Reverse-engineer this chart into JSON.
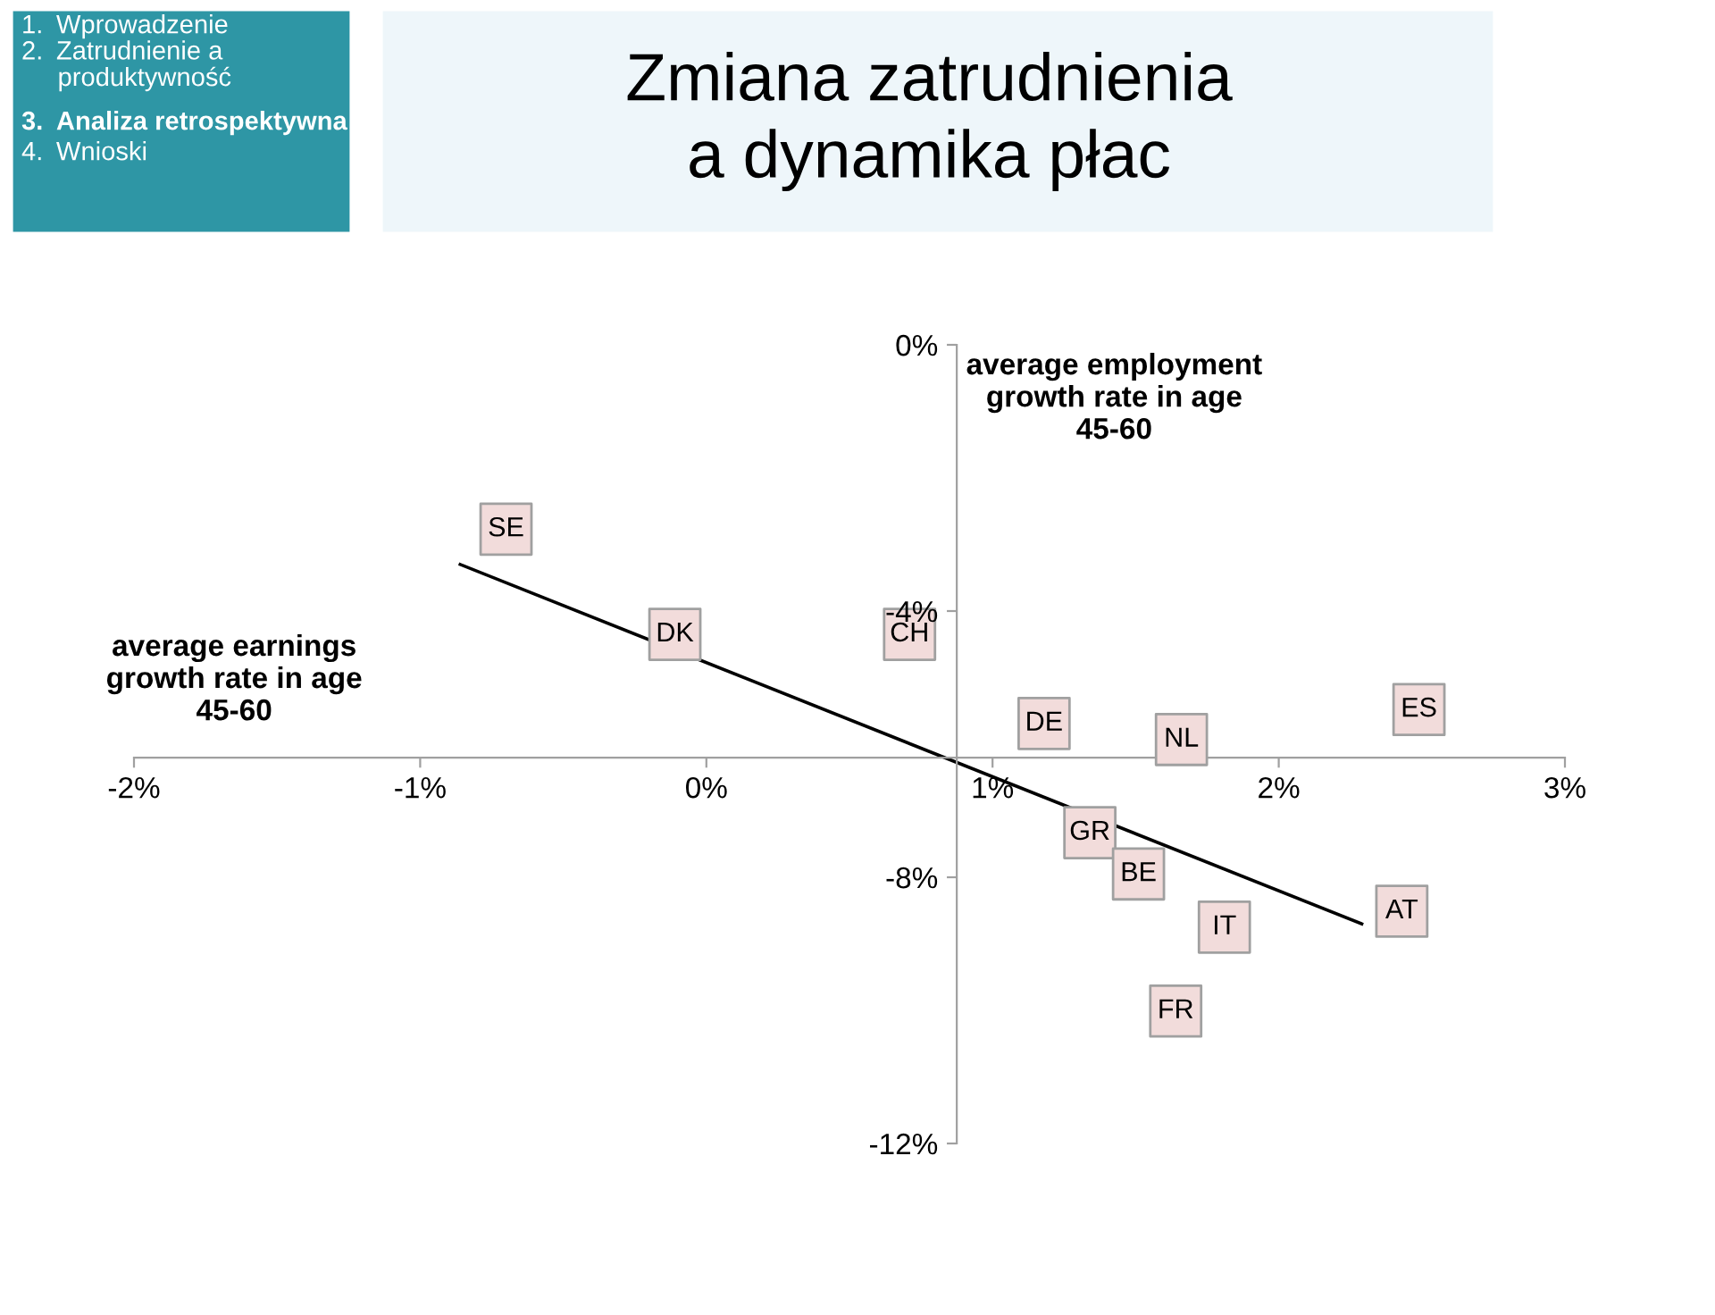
{
  "chart_data": {
    "type": "scatter",
    "title": "Zmiana zatrudnienia\na dynamika płac",
    "xlabel": "average earnings\ngrowth rate in age\n45-60",
    "ylabel": "average employment\ngrowth rate in age\n45-60",
    "xlim": [
      -2,
      3
    ],
    "ylim": [
      -12,
      0
    ],
    "xticks": [
      {
        "value": -2,
        "label": "-2%"
      },
      {
        "value": -1,
        "label": "-1%"
      },
      {
        "value": 0,
        "label": "0%"
      },
      {
        "value": 1,
        "label": "1%"
      },
      {
        "value": 2,
        "label": "2%"
      },
      {
        "value": 3,
        "label": "3%"
      }
    ],
    "yticks": [
      {
        "value": 0,
        "label": "0%"
      },
      {
        "value": -4,
        "label": "-4%"
      },
      {
        "value": -8,
        "label": "-8%"
      },
      {
        "value": -12,
        "label": "-12%"
      }
    ],
    "grid": false,
    "legend": false,
    "series": [
      {
        "marker": "square",
        "color": "#f2dcdb",
        "x": [
          -0.7,
          -0.11,
          0.71,
          1.18,
          1.66,
          2.49,
          1.34,
          1.51,
          1.81,
          2.43,
          1.64
        ],
        "values": [
          -2.77,
          -4.35,
          -4.35,
          -5.69,
          -5.93,
          -5.48,
          -7.33,
          -7.95,
          -8.75,
          -8.51,
          -10.01
        ]
      },
      {
        "type": "line",
        "marker": "none",
        "color": "#000000",
        "x": [
          -0.86,
          2.29
        ],
        "values": [
          -3.3,
          -8.7
        ]
      }
    ],
    "annotations": [
      "1. Wprowadzenie\n2. Zatrudnienie a\n     produktywność",
      "3. Analiza retrospektywna",
      "4. Wnioski",
      {
        "text": "SE",
        "x": -0.7,
        "y": -2.77
      },
      {
        "text": "DK",
        "x": -0.11,
        "y": -4.35
      },
      {
        "text": "CH",
        "x": 0.71,
        "y": -4.35
      },
      {
        "text": "DE",
        "x": 1.18,
        "y": -5.69
      },
      {
        "text": "NL",
        "x": 1.66,
        "y": -5.93
      },
      {
        "text": "ES",
        "x": 2.49,
        "y": -5.48
      },
      {
        "text": "GR",
        "x": 1.34,
        "y": -7.33
      },
      {
        "text": "BE",
        "x": 1.51,
        "y": -7.95
      },
      {
        "text": "IT",
        "x": 1.81,
        "y": -8.75
      },
      {
        "text": "AT",
        "x": 2.43,
        "y": -8.51
      },
      {
        "text": "FR",
        "x": 1.64,
        "y": -10.01
      }
    ]
  }
}
